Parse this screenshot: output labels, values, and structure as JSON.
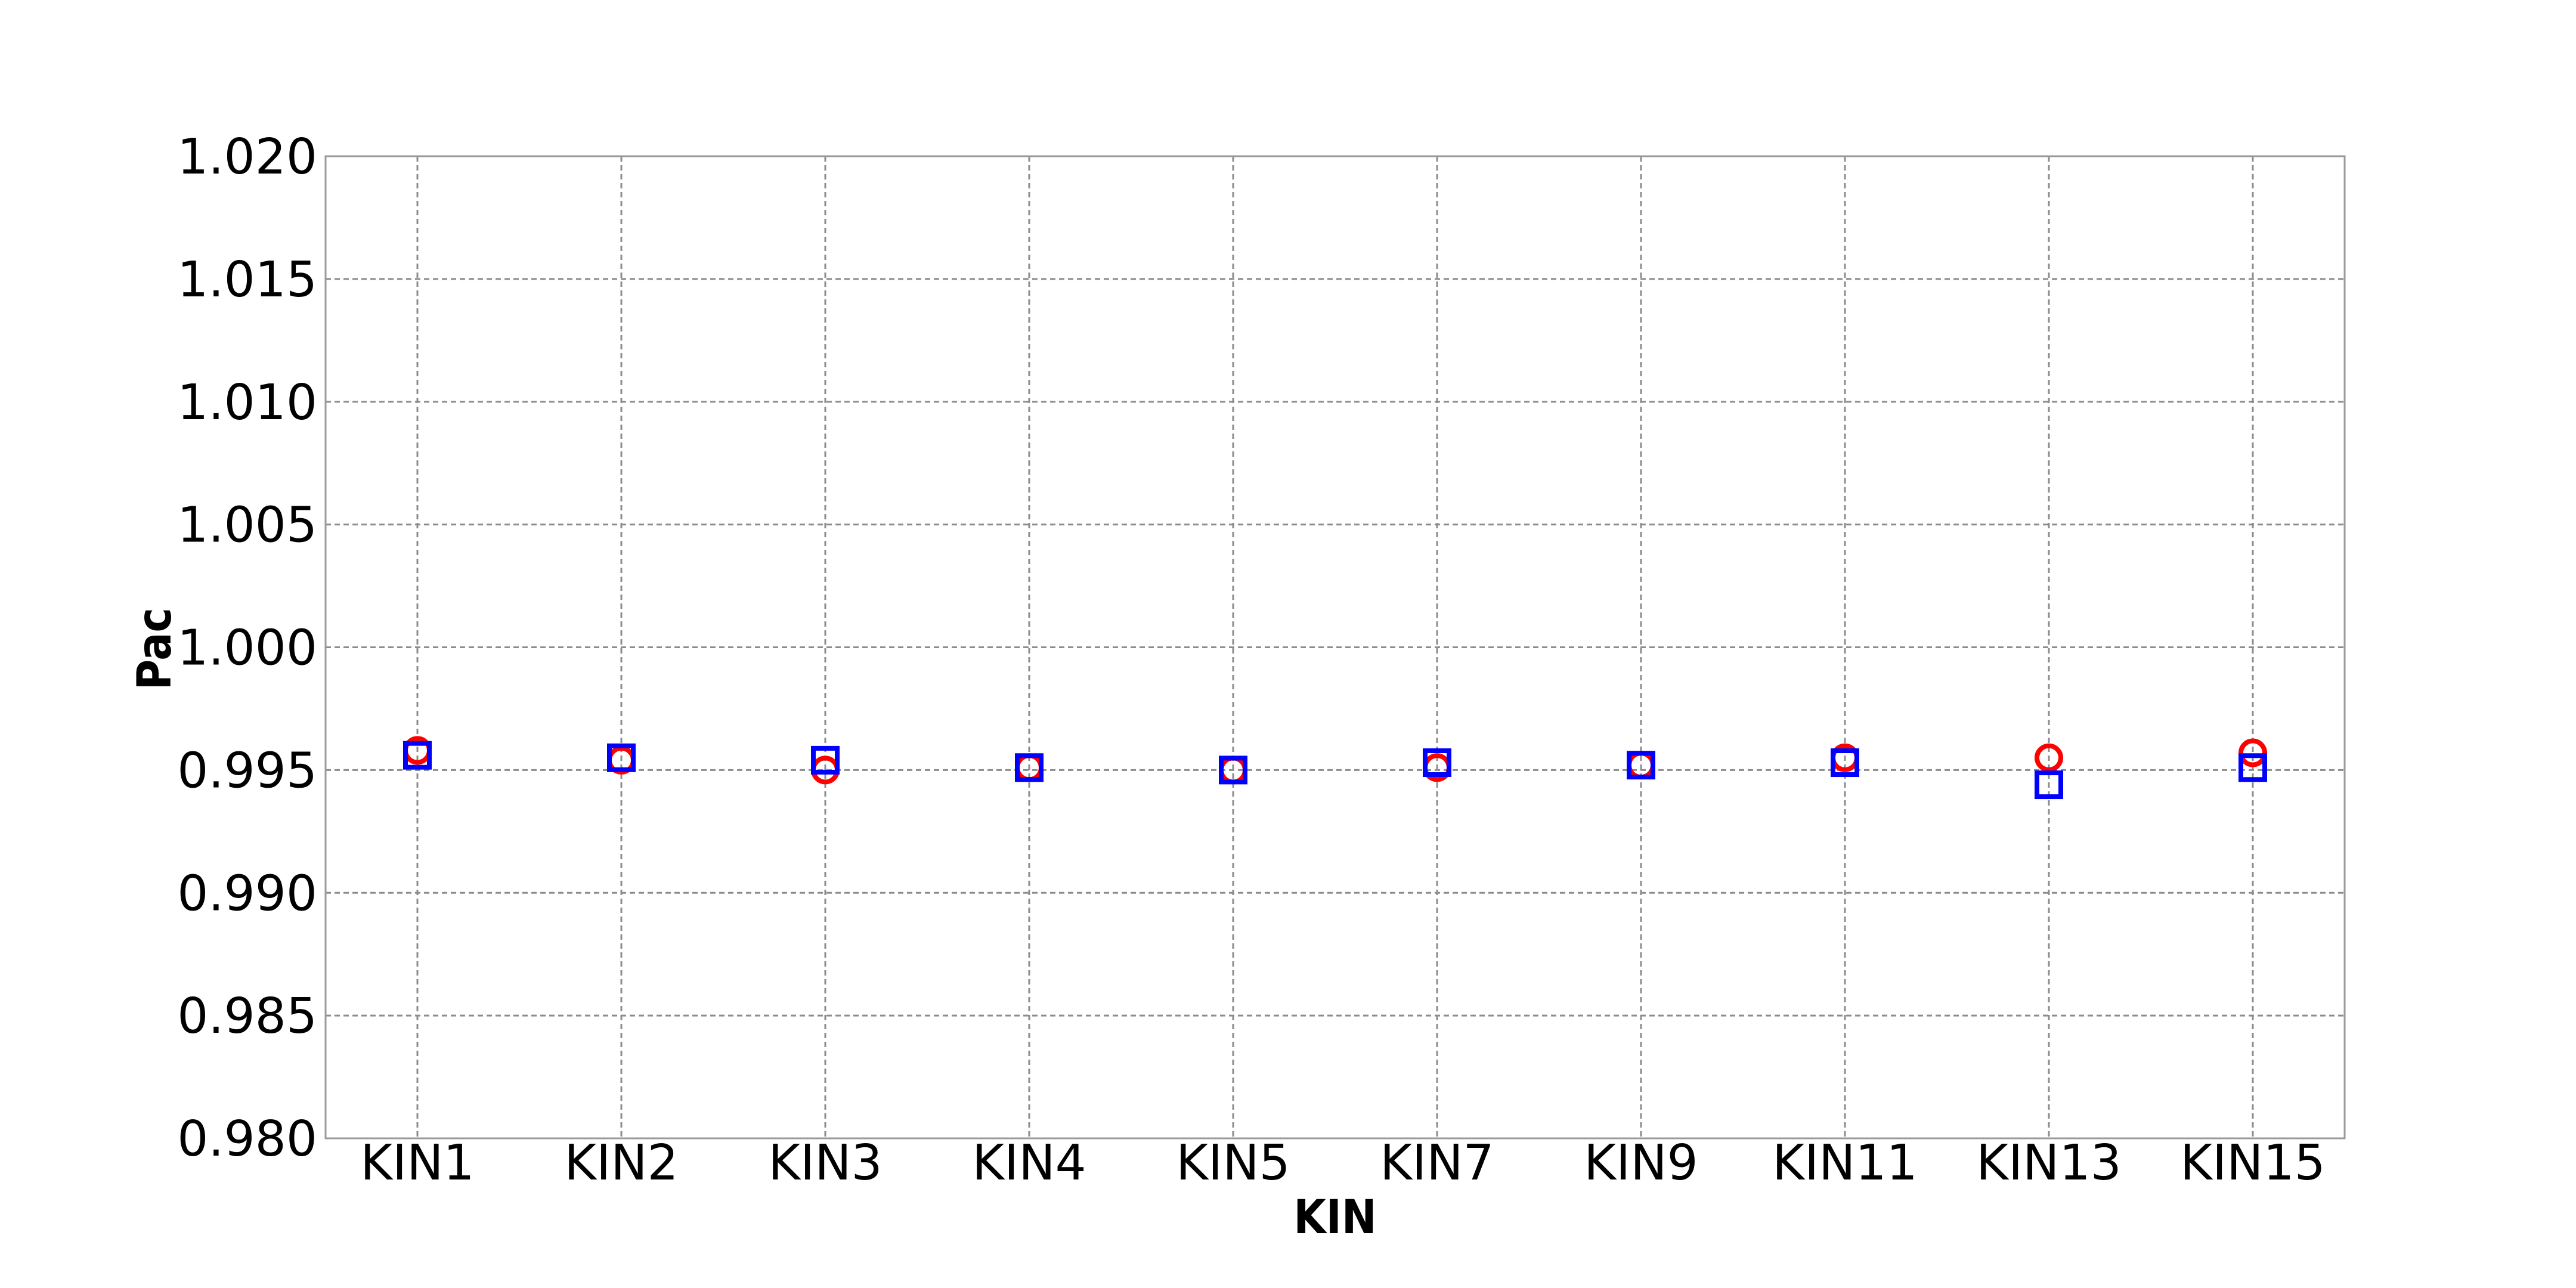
{
  "chart_data": {
    "type": "scatter",
    "title": "",
    "xlabel": "KIN",
    "ylabel": "Pac",
    "categories": [
      "KIN1",
      "KIN2",
      "KIN3",
      "KIN4",
      "KIN5",
      "KIN7",
      "KIN9",
      "KIN11",
      "KIN13",
      "KIN15"
    ],
    "ylim": [
      0.98,
      1.02
    ],
    "yticks": [
      "0.980",
      "0.985",
      "0.990",
      "0.995",
      "1.000",
      "1.005",
      "1.010",
      "1.015",
      "1.020"
    ],
    "grid": true,
    "legend": "none",
    "series": [
      {
        "marker": "circle",
        "color": "#ff0000",
        "values": [
          0.9958,
          0.9954,
          0.995,
          0.9951,
          0.995,
          0.9951,
          0.9952,
          0.9955,
          0.9955,
          0.9957
        ]
      },
      {
        "marker": "square",
        "color": "#0000ff",
        "values": [
          0.9956,
          0.9955,
          0.9954,
          0.9951,
          0.995,
          0.9953,
          0.9952,
          0.9953,
          0.9944,
          0.9951
        ]
      }
    ]
  }
}
